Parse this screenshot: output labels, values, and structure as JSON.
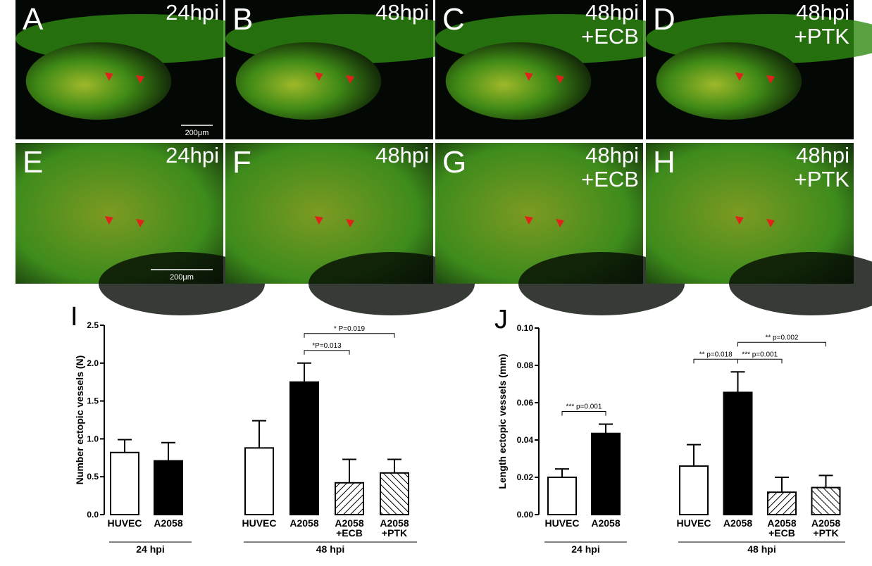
{
  "panels": [
    {
      "letter": "A",
      "label": [
        "24hpi"
      ],
      "scale_bar": "200μm"
    },
    {
      "letter": "B",
      "label": [
        "48hpi"
      ]
    },
    {
      "letter": "C",
      "label": [
        "48hpi",
        "+ECB"
      ]
    },
    {
      "letter": "D",
      "label": [
        "48hpi",
        "+PTK"
      ]
    },
    {
      "letter": "E",
      "label": [
        "24hpi"
      ],
      "scale_bar": "200μm"
    },
    {
      "letter": "F",
      "label": [
        "48hpi"
      ]
    },
    {
      "letter": "G",
      "label": [
        "48hpi",
        "+ECB"
      ]
    },
    {
      "letter": "H",
      "label": [
        "48hpi",
        "+PTK"
      ]
    }
  ],
  "chart_data": [
    {
      "type": "bar",
      "panel": "I",
      "y_label": "Number ectopic vessels (N)",
      "ylim": [
        0,
        2.5
      ],
      "yticks": [
        {
          "value": 0,
          "label": "0.0"
        },
        0.5,
        {
          "value": 1,
          "label": "1.0"
        },
        1.5,
        {
          "value": 2,
          "label": "2.0"
        },
        2.5
      ],
      "groups": [
        {
          "label": "24 hpi",
          "categories": [
            "HUVEC",
            "A2058"
          ],
          "values": [
            0.82,
            0.71
          ],
          "errors": [
            0.17,
            0.24
          ],
          "fills": [
            "white",
            "black"
          ],
          "comparisons": []
        },
        {
          "label": "48 hpi",
          "categories": [
            "HUVEC",
            "A2058",
            "A2058\n+ECB",
            "A2058\n+PTK"
          ],
          "values": [
            0.88,
            1.75,
            0.42,
            0.55
          ],
          "errors": [
            0.36,
            0.25,
            0.31,
            0.18
          ],
          "fills": [
            "white",
            "black",
            "hatch",
            "hatch-reverse"
          ],
          "comparisons": [
            {
              "text": "*P=0.013",
              "between": [
                "A2058",
                "A2058\n+ECB"
              ]
            },
            {
              "text": "* P=0.019",
              "between": [
                "A2058",
                "A2058\n+PTK"
              ]
            }
          ]
        }
      ]
    },
    {
      "type": "bar",
      "panel": "J",
      "y_label": "Length ectopic vessels (mm)",
      "ylim": [
        0,
        0.1
      ],
      "yticks": [
        {
          "value": 0,
          "label": "0.00"
        },
        0.02,
        0.04,
        0.06,
        0.08,
        {
          "value": 0.1,
          "label": "0.10"
        }
      ],
      "groups": [
        {
          "label": "24 hpi",
          "categories": [
            "HUVEC",
            "A2058"
          ],
          "values": [
            0.02,
            0.0435
          ],
          "errors": [
            0.0045,
            0.005
          ],
          "fills": [
            "white",
            "black"
          ],
          "comparisons": [
            {
              "text": "*** p=0.001",
              "between": [
                "HUVEC",
                "A2058"
              ]
            }
          ]
        },
        {
          "label": "48 hpi",
          "categories": [
            "HUVEC",
            "A2058",
            "A2058\n+ECB",
            "A2058\n+PTK"
          ],
          "values": [
            0.026,
            0.0655,
            0.012,
            0.0145
          ],
          "errors": [
            0.0115,
            0.011,
            0.008,
            0.0065
          ],
          "fills": [
            "white",
            "black",
            "hatch",
            "hatch-reverse"
          ],
          "comparisons": [
            {
              "text": "** p=0.018",
              "between": [
                "HUVEC",
                "A2058"
              ]
            },
            {
              "text": "*** p=0.001",
              "between": [
                "A2058",
                "A2058\n+ECB"
              ]
            },
            {
              "text": "** p=0.002",
              "between": [
                "A2058",
                "A2058\n+PTK"
              ]
            }
          ]
        }
      ]
    }
  ]
}
